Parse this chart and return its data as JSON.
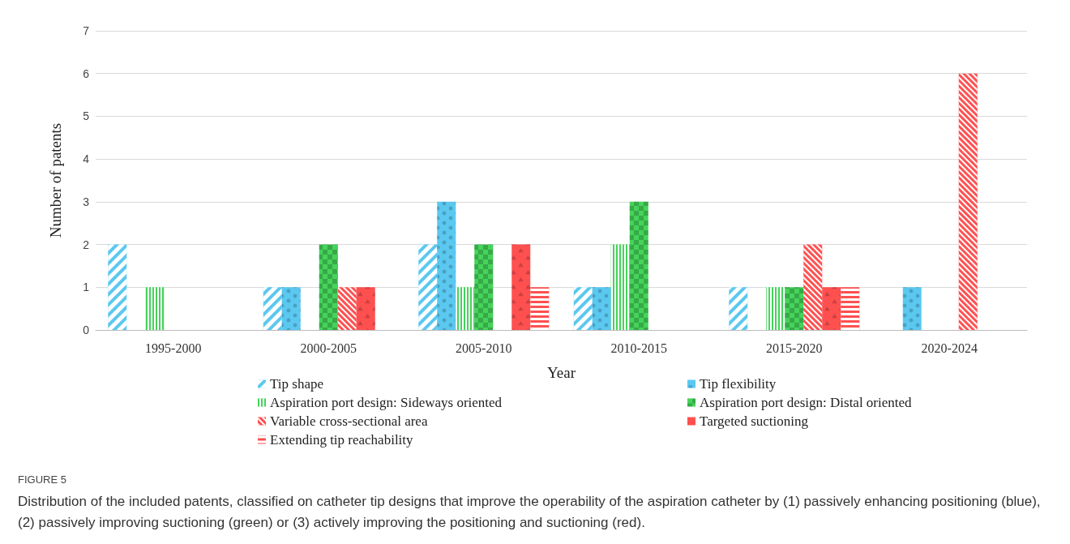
{
  "chart_data": {
    "type": "bar",
    "xlabel": "Year",
    "ylabel": "Number of patents",
    "categories": [
      "1995-2000",
      "2000-2005",
      "2005-2010",
      "2010-2015",
      "2015-2020",
      "2020-2024"
    ],
    "series": [
      {
        "name": "Tip shape",
        "color": "#5bc8f0",
        "values": [
          2,
          1,
          2,
          1,
          1,
          0
        ]
      },
      {
        "name": "Tip flexibility",
        "color": "#5bc8f0",
        "values": [
          0,
          1,
          3,
          1,
          0,
          1
        ]
      },
      {
        "name": "Aspiration port design: Sideways oriented",
        "color": "#45d35a",
        "values": [
          1,
          0,
          1,
          2,
          1,
          0
        ]
      },
      {
        "name": "Aspiration port design: Distal oriented",
        "color": "#45d35a",
        "values": [
          0,
          2,
          2,
          3,
          1,
          0
        ]
      },
      {
        "name": "Variable cross-sectional area",
        "color": "#ff5050",
        "values": [
          0,
          1,
          0,
          0,
          2,
          6
        ]
      },
      {
        "name": "Targeted suctioning",
        "color": "#ff5050",
        "values": [
          0,
          1,
          2,
          0,
          1,
          0
        ]
      },
      {
        "name": "Extending tip reachability",
        "color": "#ff5050",
        "values": [
          0,
          0,
          1,
          0,
          1,
          0
        ]
      }
    ],
    "ylim": [
      0,
      7
    ],
    "yticks": [
      0,
      1,
      2,
      3,
      4,
      5,
      6,
      7
    ],
    "grid": "y",
    "legend": "bottom",
    "annotations": [
      "FIGURE 5",
      "Distribution of the included patents, classified on catheter tip designs that improve the operability of the aspiration catheter by (1) passively enhancing positioning (blue), (2) passively improving suctioning (green) or (3) actively improving the positioning and suctioning (red)."
    ]
  }
}
